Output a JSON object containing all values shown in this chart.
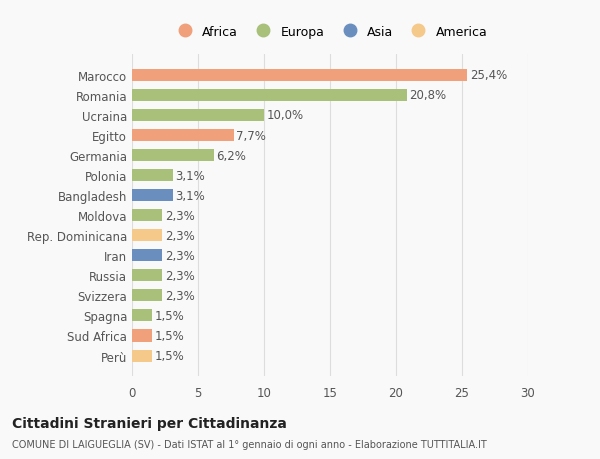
{
  "categories": [
    "Perù",
    "Sud Africa",
    "Spagna",
    "Svizzera",
    "Russia",
    "Iran",
    "Rep. Dominicana",
    "Moldova",
    "Bangladesh",
    "Polonia",
    "Germania",
    "Egitto",
    "Ucraina",
    "Romania",
    "Marocco"
  ],
  "values": [
    1.5,
    1.5,
    1.5,
    2.3,
    2.3,
    2.3,
    2.3,
    2.3,
    3.1,
    3.1,
    6.2,
    7.7,
    10.0,
    20.8,
    25.4
  ],
  "labels": [
    "1,5%",
    "1,5%",
    "1,5%",
    "2,3%",
    "2,3%",
    "2,3%",
    "2,3%",
    "2,3%",
    "3,1%",
    "3,1%",
    "6,2%",
    "7,7%",
    "10,0%",
    "20,8%",
    "25,4%"
  ],
  "colors": [
    "#F5C98A",
    "#F0A07A",
    "#A8C07A",
    "#A8C07A",
    "#A8C07A",
    "#6A8FBF",
    "#F5C98A",
    "#A8C07A",
    "#6A8FBF",
    "#A8C07A",
    "#A8C07A",
    "#F0A07A",
    "#A8C07A",
    "#A8C07A",
    "#F0A07A"
  ],
  "legend": [
    {
      "label": "Africa",
      "color": "#F0A07A"
    },
    {
      "label": "Europa",
      "color": "#A8C07A"
    },
    {
      "label": "Asia",
      "color": "#6A8FBF"
    },
    {
      "label": "America",
      "color": "#F5C98A"
    }
  ],
  "title": "Cittadini Stranieri per Cittadinanza",
  "subtitle": "COMUNE DI LAIGUEGLIA (SV) - Dati ISTAT al 1° gennaio di ogni anno - Elaborazione TUTTITALIA.IT",
  "xlim": [
    0,
    30
  ],
  "xticks": [
    0,
    5,
    10,
    15,
    20,
    25,
    30
  ],
  "background_color": "#f9f9f9",
  "grid_color": "#dddddd"
}
